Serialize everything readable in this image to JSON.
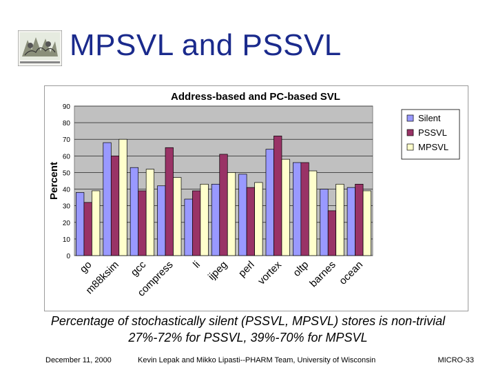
{
  "slide": {
    "title": "MPSVL and PSSVL",
    "caption_line1": "Percentage of stochastically silent (PSSVL, MPSVL) stores is non-trivial",
    "caption_line2": "27%-72% for PSSVL, 39%-70% for MPSVL",
    "footer_left": "December 11, 2000",
    "footer_center": "Kevin Lepak and Mikko Lipasti--PHARM Team, University of Wisconsin",
    "footer_right": "MICRO-33"
  },
  "colors": {
    "title": "#1a2a8c",
    "silent": "#9999ff",
    "pssvl": "#993366",
    "mpsvl": "#ffffcc",
    "plot_bg": "#c0c0c0"
  },
  "chart_data": {
    "type": "bar",
    "title": "Address-based and PC-based SVL",
    "xlabel": "",
    "ylabel": "Percent",
    "ylim": [
      0,
      90
    ],
    "yticks": [
      0,
      10,
      20,
      30,
      40,
      50,
      60,
      70,
      80,
      90
    ],
    "grid": true,
    "legend_position": "right",
    "categories": [
      "go",
      "m88ksim",
      "gcc",
      "compress",
      "li",
      "ijpeg",
      "perl",
      "vortex",
      "oltp",
      "barnes",
      "ocean"
    ],
    "series": [
      {
        "name": "Silent",
        "color": "#9999ff",
        "values": [
          38,
          68,
          53,
          42,
          34,
          43,
          49,
          64,
          56,
          40,
          41
        ]
      },
      {
        "name": "PSSVL",
        "color": "#993366",
        "values": [
          32,
          60,
          39,
          65,
          39,
          61,
          41,
          72,
          56,
          27,
          43
        ]
      },
      {
        "name": "MPSVL",
        "color": "#ffffcc",
        "values": [
          39,
          70,
          52,
          47,
          43,
          50,
          44,
          58,
          51,
          43,
          39
        ]
      }
    ]
  }
}
